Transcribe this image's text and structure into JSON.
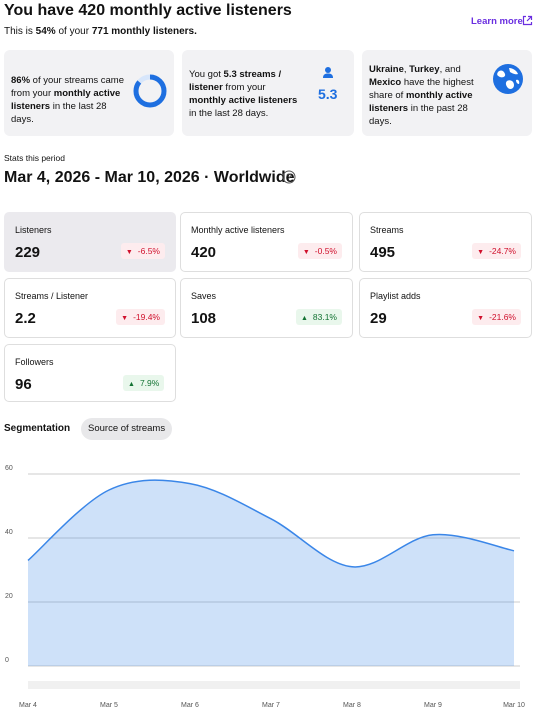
{
  "header": {
    "title": "You have 420 monthly active listeners",
    "subtitle": [
      {
        "text": "This is "
      },
      {
        "text": "54%",
        "bold": true
      },
      {
        "text": " of your "
      },
      {
        "text": "771 monthly listeners.",
        "bold": true
      }
    ],
    "link": "Learn more"
  },
  "insights": [
    {
      "text": [
        {
          "text": "86%",
          "bold": true
        },
        {
          "text": " of your streams came from your "
        },
        {
          "text": "monthly active listeners",
          "bold": true
        },
        {
          "text": " in the last 28 days."
        }
      ],
      "ring_value": 86
    },
    {
      "text": [
        {
          "text": "You got "
        },
        {
          "text": "5.3 streams / listener",
          "bold": true
        },
        {
          "text": " from your "
        },
        {
          "text": "monthly active listeners",
          "bold": true
        },
        {
          "text": " in the last 28 days."
        }
      ],
      "figure": 5.3
    },
    {
      "text": [
        {
          "text": "Ukraine",
          "bold": true
        },
        {
          "text": ", "
        },
        {
          "text": "Turkey",
          "bold": true
        },
        {
          "text": ", and "
        },
        {
          "text": "Mexico",
          "bold": true
        },
        {
          "text": " have the highest share of "
        },
        {
          "text": "monthly active listeners",
          "bold": true
        },
        {
          "text": " in the past 28 days."
        }
      ]
    }
  ],
  "period": {
    "label": "Stats this period",
    "range": "Mar 4, 2026 - Mar 10, 2026 · Worldwide"
  },
  "stats": [
    {
      "label": "Listeners",
      "value": 229,
      "change": "-6.5%",
      "trend": "down",
      "selected": true
    },
    {
      "label": "Monthly active listeners",
      "value": 420,
      "change": "-0.5%",
      "trend": "down"
    },
    {
      "label": "Streams",
      "value": 495,
      "change": "-24.7%",
      "trend": "down"
    },
    {
      "label": "Streams / Listener",
      "value": 2.2,
      "change": "-19.4%",
      "trend": "down"
    },
    {
      "label": "Saves",
      "value": 108,
      "change": "83.1%",
      "trend": "up"
    },
    {
      "label": "Playlist adds",
      "value": 29,
      "change": "-21.6%",
      "trend": "down"
    },
    {
      "label": "Followers",
      "value": 96,
      "change": "7.9%",
      "trend": "up"
    }
  ],
  "segmentation": {
    "label": "Segmentation",
    "chip": "Source of streams"
  },
  "chart_data": {
    "type": "area",
    "categories": [
      "Mar 4",
      "Mar 5",
      "Mar 6",
      "Mar 7",
      "Mar 8",
      "Mar 9",
      "Mar 10"
    ],
    "series": [
      {
        "name": "Listeners",
        "color": "#3a86e8",
        "values": [
          33,
          55,
          57,
          46,
          31,
          41,
          36
        ]
      }
    ],
    "ylim": [
      0,
      60
    ],
    "yticks": [
      0,
      20,
      40,
      60
    ],
    "grid": true
  }
}
